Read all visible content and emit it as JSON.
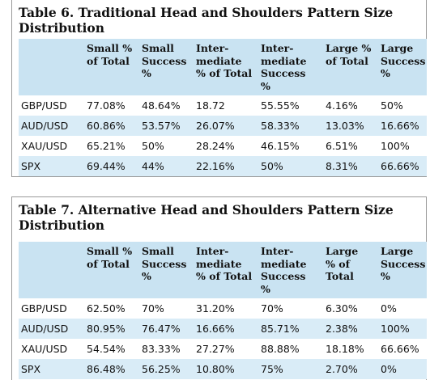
{
  "table6": {
    "caption_line1": "Table 6. Traditional Head and Shoulders Pattern Size",
    "caption_line2": "Distribution",
    "headers": [
      [
        "Small %",
        "of Total"
      ],
      [
        "Small",
        "Success",
        "%"
      ],
      [
        "Inter-",
        "mediate",
        "% of Total"
      ],
      [
        "Inter-",
        "mediate",
        "Success %"
      ],
      [
        "Large %",
        "of Total"
      ],
      [
        "Large",
        "Success",
        "%"
      ]
    ],
    "rows": [
      {
        "label": "GBP/USD",
        "cells": [
          "77.08%",
          "48.64%",
          "18.72",
          "55.55%",
          "4.16%",
          "50%"
        ]
      },
      {
        "label": "AUD/USD",
        "cells": [
          "60.86%",
          "53.57%",
          "26.07%",
          "58.33%",
          "13.03%",
          "16.66%"
        ]
      },
      {
        "label": "XAU/USD",
        "cells": [
          "65.21%",
          "50%",
          "28.24%",
          "46.15%",
          "6.51%",
          "100%"
        ]
      },
      {
        "label": "SPX",
        "cells": [
          "69.44%",
          "44%",
          "22.16%",
          "50%",
          "8.31%",
          "66.66%"
        ]
      }
    ]
  },
  "table7": {
    "caption_line1": "Table 7. Alternative Head and Shoulders Pattern Size",
    "caption_line2": "Distribution",
    "headers": [
      [
        "Small %",
        "of Total"
      ],
      [
        "Small",
        "Success",
        "%"
      ],
      [
        "Inter-",
        "mediate",
        "% of Total"
      ],
      [
        "Inter-",
        "mediate",
        "Success %"
      ],
      [
        "Large",
        "% of",
        "Total"
      ],
      [
        "Large",
        "Success",
        "%"
      ]
    ],
    "rows": [
      {
        "label": "GBP/USD",
        "cells": [
          "62.50%",
          "70%",
          "31.20%",
          "70%",
          "6.30%",
          "0%"
        ]
      },
      {
        "label": "AUD/USD",
        "cells": [
          "80.95%",
          "76.47%",
          "16.66%",
          "85.71%",
          "2.38%",
          "100%"
        ]
      },
      {
        "label": "XAU/USD",
        "cells": [
          "54.54%",
          "83.33%",
          "27.27%",
          "88.88%",
          "18.18%",
          "66.66%"
        ]
      },
      {
        "label": "SPX",
        "cells": [
          "86.48%",
          "56.25%",
          "10.80%",
          "75%",
          "2.70%",
          "0%"
        ]
      }
    ]
  },
  "colors": {
    "header_bg": "#c9e3f2",
    "stripe_bg": "#d9ecf7",
    "border": "#9a9a9a"
  }
}
